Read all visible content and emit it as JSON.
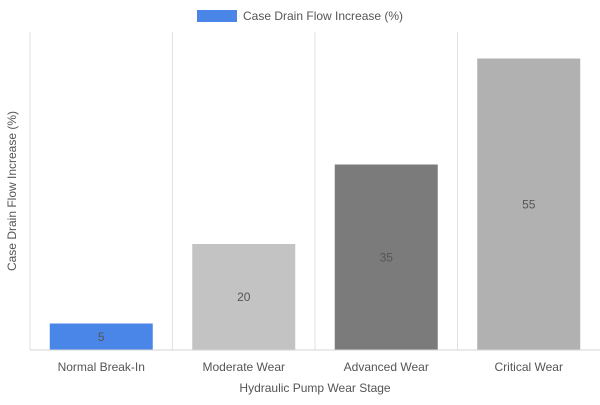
{
  "chart_data": {
    "type": "bar",
    "categories": [
      "Normal Break-In",
      "Moderate Wear",
      "Advanced Wear",
      "Critical Wear"
    ],
    "series": [
      {
        "name": "Case Drain Flow Increase (%)",
        "values": [
          5,
          20,
          35,
          55
        ],
        "colors": [
          "#4a86e8",
          "#c3c3c3",
          "#7b7b7b",
          "#b1b1b1"
        ]
      }
    ],
    "xlabel": "Hydraulic Pump Wear Stage",
    "ylabel": "Case Drain Flow Increase (%)",
    "ylim": [
      0,
      60
    ],
    "legend_position": "top-center",
    "legend_color": "#4a86e8",
    "grid": true,
    "show_data_labels": true
  }
}
